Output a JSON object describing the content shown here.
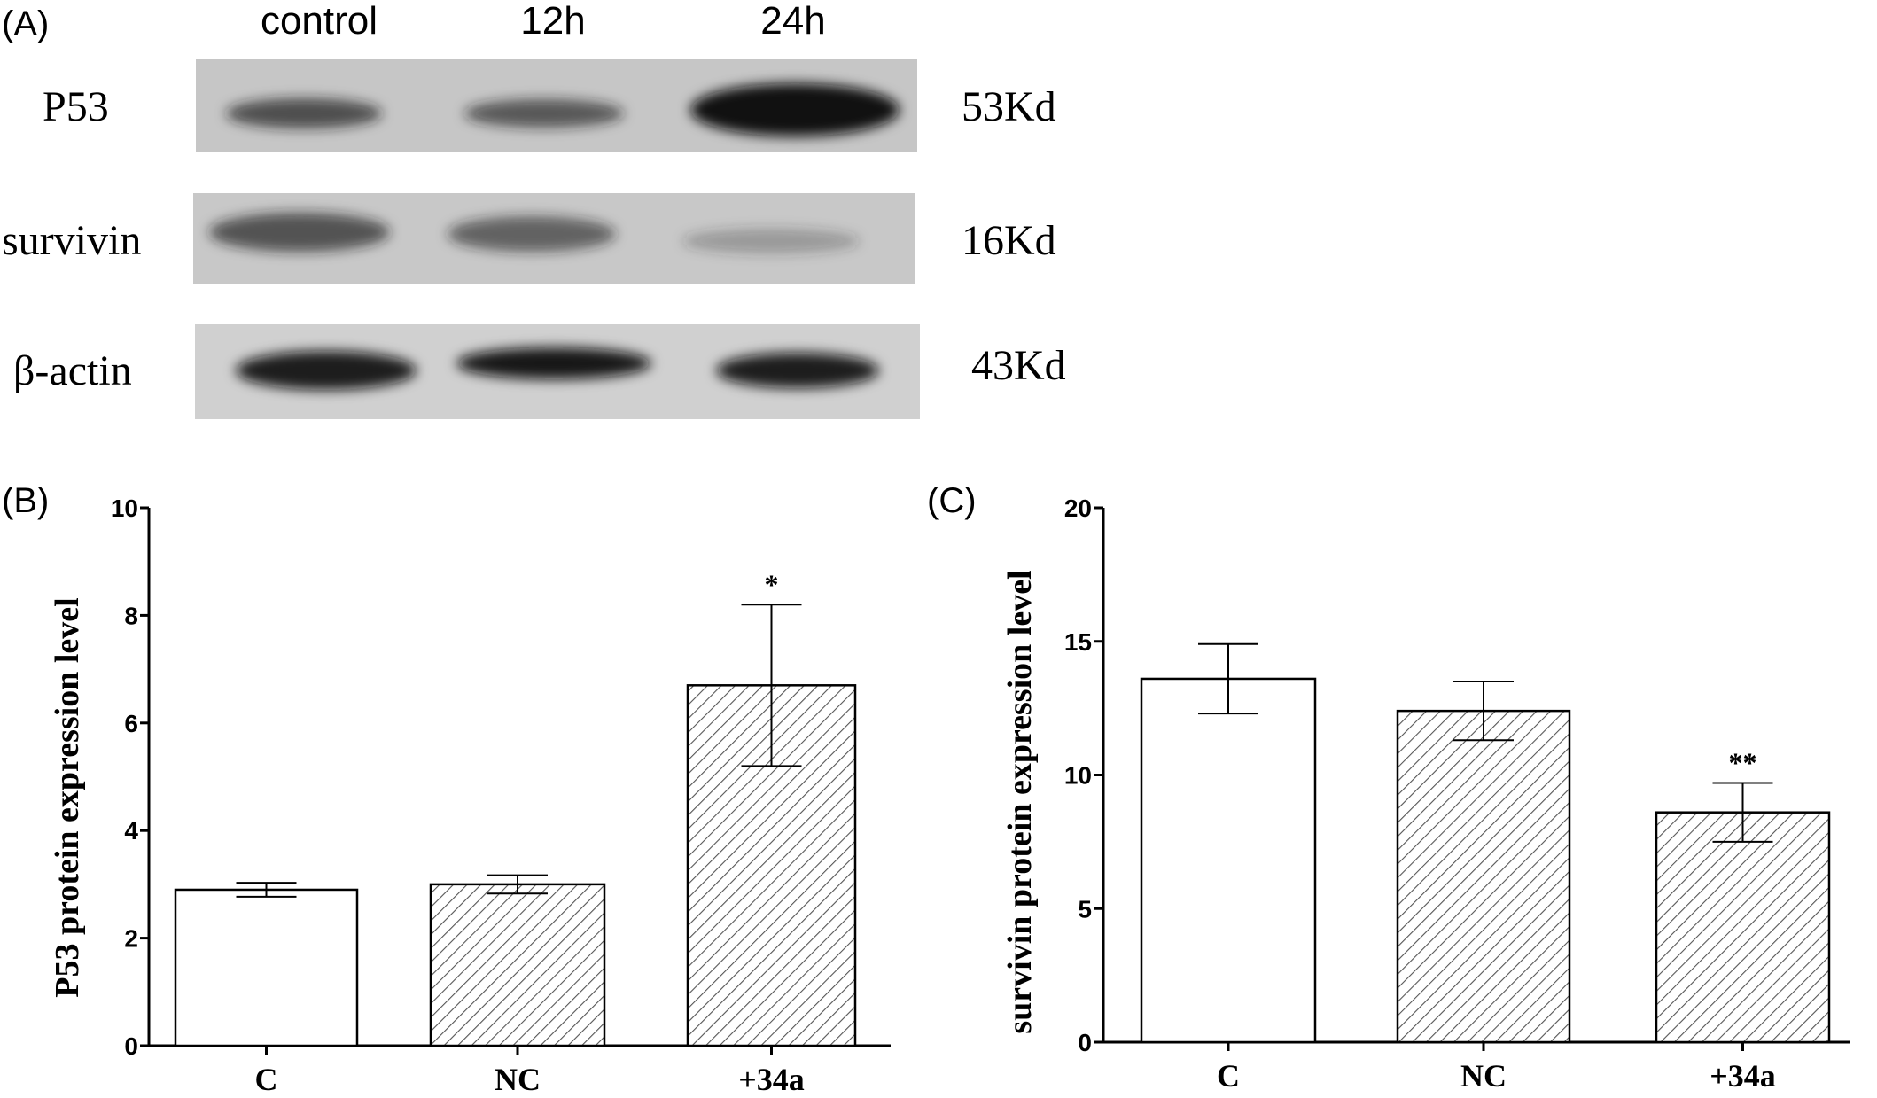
{
  "panel_a": {
    "label": "(A)",
    "lanes": [
      "control",
      "12h",
      "24h"
    ],
    "rows": [
      {
        "name": "P53",
        "size": "53Kd",
        "band_intensity": [
          0.55,
          0.5,
          0.95
        ]
      },
      {
        "name": "survivin",
        "size": "16Kd",
        "band_intensity": [
          0.55,
          0.5,
          0.22
        ]
      },
      {
        "name": "β-actin",
        "size": "43Kd",
        "band_intensity": [
          0.9,
          0.92,
          0.9
        ]
      }
    ]
  },
  "colors": {
    "axis": "#000000",
    "bar_outline": "#000000",
    "hatch": "#555555",
    "blot_bg": "#c4c4c4",
    "band": "#141414"
  },
  "chart_data": [
    {
      "type": "bar",
      "panel_label": "(B)",
      "categories": [
        "C",
        "NC",
        "+34a"
      ],
      "values": [
        2.9,
        3.0,
        6.7
      ],
      "errors": [
        0.13,
        0.17,
        1.5
      ],
      "annotations": [
        "",
        "",
        "*"
      ],
      "fills": [
        "none",
        "hatch",
        "hatch"
      ],
      "ylabel": "P53 protein expression level",
      "ylim": [
        0,
        10
      ],
      "yticks": [
        0,
        2,
        4,
        6,
        8,
        10
      ],
      "grid": false
    },
    {
      "type": "bar",
      "panel_label": "(C)",
      "categories": [
        "C",
        "NC",
        "+34a"
      ],
      "values": [
        13.6,
        12.4,
        8.6
      ],
      "errors": [
        1.3,
        1.1,
        1.1
      ],
      "annotations": [
        "",
        "",
        "**"
      ],
      "fills": [
        "none",
        "hatch",
        "hatch"
      ],
      "ylabel": "survivin protein expression level",
      "ylim": [
        0,
        20
      ],
      "yticks": [
        0,
        5,
        10,
        15,
        20
      ],
      "grid": false
    }
  ]
}
